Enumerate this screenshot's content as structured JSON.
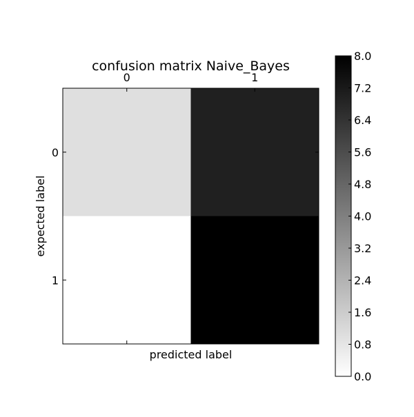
{
  "chart_data": {
    "type": "heatmap",
    "title": "confusion matrix Naive_Bayes",
    "xlabel": "predicted label",
    "ylabel": "expected label",
    "x_categories": [
      "0",
      "1"
    ],
    "y_categories": [
      "0",
      "1"
    ],
    "values": [
      [
        1,
        7
      ],
      [
        0,
        8
      ]
    ],
    "colormap": "gray_r",
    "color_range": [
      0,
      8
    ],
    "colorbar_ticks": [
      "0.0",
      "0.8",
      "1.6",
      "2.4",
      "3.2",
      "4.0",
      "4.8",
      "5.6",
      "6.4",
      "7.2",
      "8.0"
    ],
    "x_tick_position": "top",
    "grid": false
  }
}
